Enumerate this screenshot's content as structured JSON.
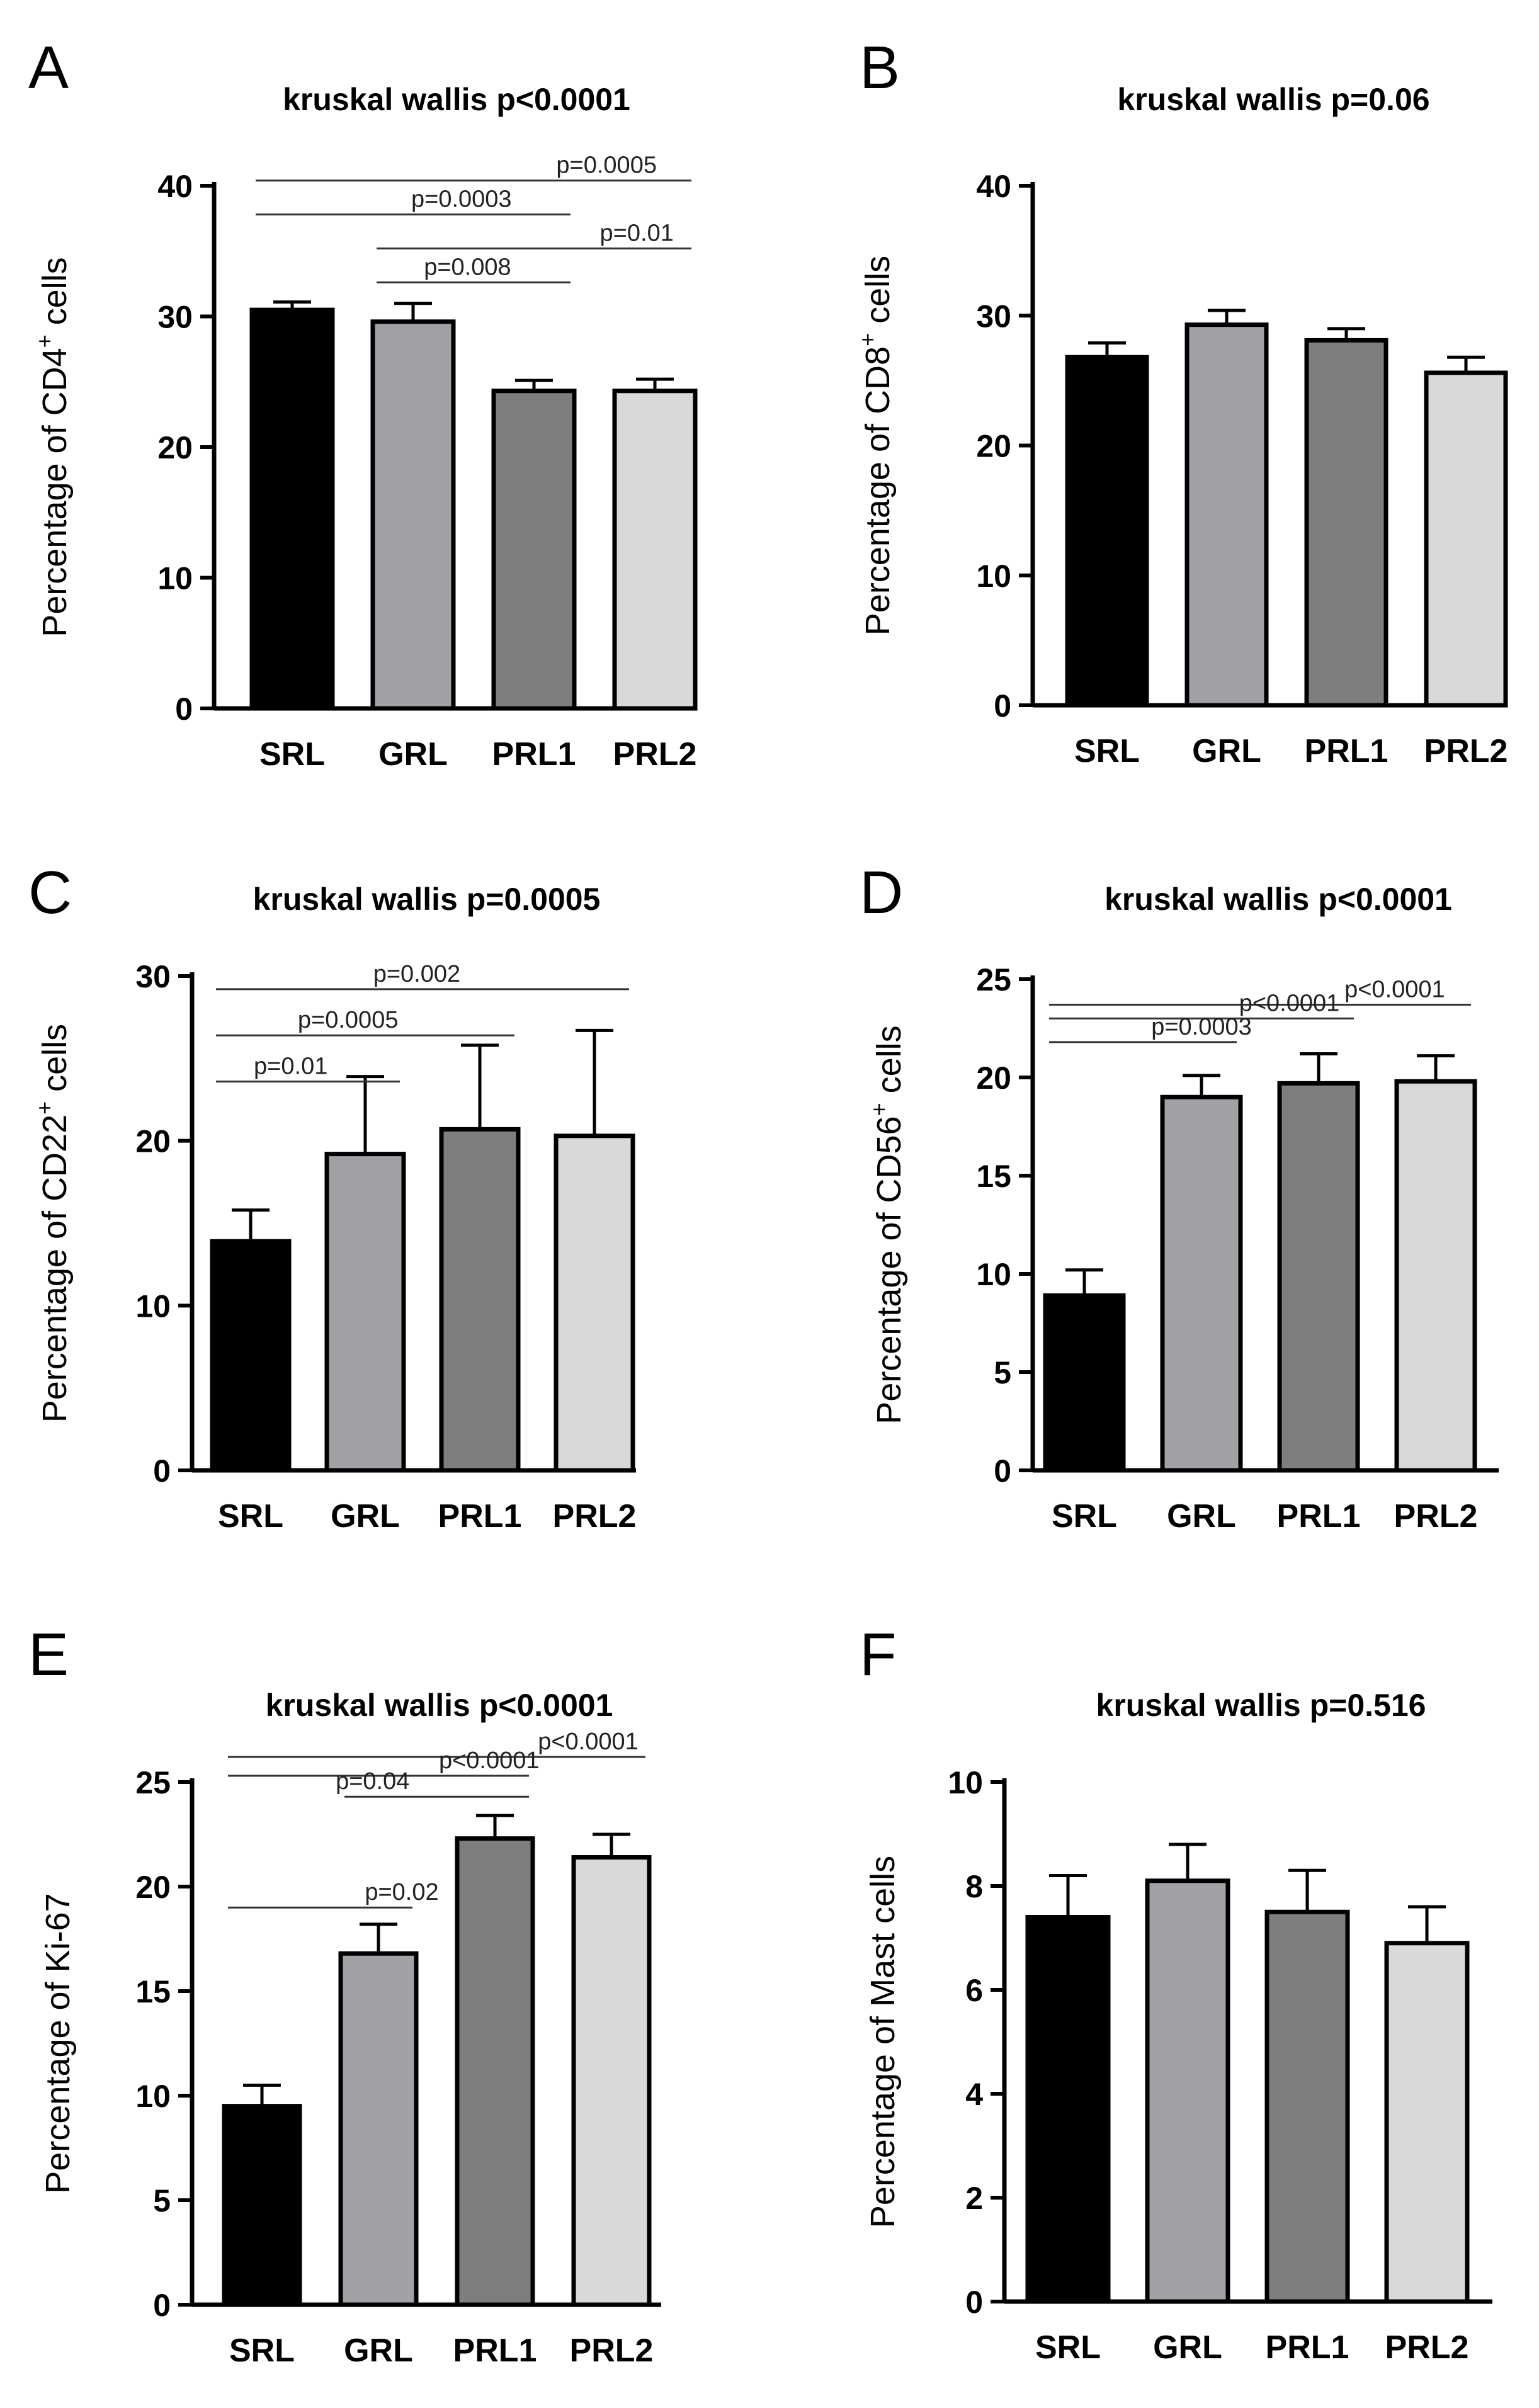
{
  "figure": {
    "description_colors": {
      "SRL": "#000000",
      "GRL": "#a1a1a6",
      "PRL1": "#7e7e7e",
      "PRL2": "#d9d9d9"
    }
  },
  "chart_data": [
    {
      "panel": "A",
      "type": "bar",
      "title": "kruskal wallis p<0.0001",
      "ylabel_prefix": "Percentage of CD4",
      "ylabel_sup": "+",
      "ylabel_suffix": " cells",
      "categories": [
        "SRL",
        "GRL",
        "PRL1",
        "PRL2"
      ],
      "values": [
        30.5,
        29.6,
        24.3,
        24.3
      ],
      "errors": [
        0.6,
        1.4,
        0.8,
        0.9
      ],
      "ylim": [
        0,
        40
      ],
      "yticks": [
        0,
        10,
        20,
        30,
        40
      ],
      "ytick_labels": [
        "0",
        "10",
        "20",
        "30",
        "40"
      ],
      "colors": [
        "#000000",
        "#a1a1a6",
        "#7e7e7e",
        "#d9d9d9"
      ],
      "annotations": [
        {
          "from": 0,
          "to": 3,
          "y": 40.4,
          "label": "p=0.0005",
          "label_x": 2.6
        },
        {
          "from": 0,
          "to": 2,
          "y": 37.8,
          "label": "p=0.0003",
          "label_x": 1.4
        },
        {
          "from": 1,
          "to": 3,
          "y": 35.2,
          "label": "p=0.01",
          "label_x": 2.85
        },
        {
          "from": 1,
          "to": 2,
          "y": 32.6,
          "label": "p=0.008",
          "label_x": 1.45
        }
      ]
    },
    {
      "panel": "B",
      "type": "bar",
      "title": "kruskal wallis p=0.06",
      "ylabel_prefix": "Percentage of CD8",
      "ylabel_sup": "+",
      "ylabel_suffix": " cells",
      "categories": [
        "SRL",
        "GRL",
        "PRL1",
        "PRL2"
      ],
      "values": [
        26.8,
        29.3,
        28.1,
        25.6
      ],
      "errors": [
        1.1,
        1.1,
        0.9,
        1.2
      ],
      "ylim": [
        0,
        40
      ],
      "yticks": [
        0,
        10,
        20,
        30,
        40
      ],
      "ytick_labels": [
        "0",
        "10",
        "20",
        "30",
        "40"
      ],
      "colors": [
        "#000000",
        "#a1a1a6",
        "#7e7e7e",
        "#d9d9d9"
      ],
      "annotations": []
    },
    {
      "panel": "C",
      "type": "bar",
      "title": "kruskal wallis p=0.0005",
      "ylabel_prefix": "Percentage of CD22",
      "ylabel_sup": "+",
      "ylabel_suffix": " cells",
      "categories": [
        "SRL",
        "GRL",
        "PRL1",
        "PRL2"
      ],
      "values": [
        13.9,
        19.2,
        20.7,
        20.3
      ],
      "errors": [
        1.9,
        4.7,
        5.1,
        6.4
      ],
      "ylim": [
        0,
        30
      ],
      "yticks": [
        0,
        10,
        20,
        30
      ],
      "ytick_labels": [
        "0",
        "10",
        "20",
        "30"
      ],
      "colors": [
        "#000000",
        "#a1a1a6",
        "#7e7e7e",
        "#d9d9d9"
      ],
      "annotations": [
        {
          "from": 0,
          "to": 3,
          "y": 29.2,
          "label": "p=0.002",
          "label_x": 1.45
        },
        {
          "from": 0,
          "to": 2,
          "y": 26.4,
          "label": "p=0.0005",
          "label_x": 0.85
        },
        {
          "from": 0,
          "to": 1,
          "y": 23.6,
          "label": "p=0.01",
          "label_x": 0.35
        }
      ]
    },
    {
      "panel": "D",
      "type": "bar",
      "title": "kruskal wallis p<0.0001",
      "ylabel_prefix": "Percentage of CD56",
      "ylabel_sup": "+",
      "ylabel_suffix": " cells",
      "categories": [
        "SRL",
        "GRL",
        "PRL1",
        "PRL2"
      ],
      "values": [
        8.9,
        19.0,
        19.7,
        19.8
      ],
      "errors": [
        1.3,
        1.1,
        1.5,
        1.3
      ],
      "ylim": [
        0,
        25
      ],
      "yticks": [
        0,
        5,
        10,
        15,
        20,
        25
      ],
      "ytick_labels": [
        "0",
        "5",
        "10",
        "15",
        "20",
        "25"
      ],
      "colors": [
        "#000000",
        "#a1a1a6",
        "#7e7e7e",
        "#d9d9d9"
      ],
      "annotations": [
        {
          "from": 0,
          "to": 3,
          "y": 23.7,
          "label": "p<0.0001",
          "label_x": 2.65
        },
        {
          "from": 0,
          "to": 2,
          "y": 23.0,
          "label": "p<0.0001",
          "label_x": 1.75
        },
        {
          "from": 0,
          "to": 1,
          "y": 21.8,
          "label": "p=0.0003",
          "label_x": 1.0
        }
      ]
    },
    {
      "panel": "E",
      "type": "bar",
      "title": "kruskal wallis p<0.0001",
      "ylabel_prefix": "Percentage of Ki-67",
      "ylabel_sup": "",
      "ylabel_suffix": "",
      "categories": [
        "SRL",
        "GRL",
        "PRL1",
        "PRL2"
      ],
      "values": [
        9.5,
        16.8,
        22.3,
        21.4
      ],
      "errors": [
        1.0,
        1.4,
        1.1,
        1.1
      ],
      "ylim": [
        0,
        25
      ],
      "yticks": [
        0,
        5,
        10,
        15,
        20,
        25
      ],
      "ytick_labels": [
        "0",
        "5",
        "10",
        "15",
        "20",
        "25"
      ],
      "colors": [
        "#000000",
        "#a1a1a6",
        "#7e7e7e",
        "#d9d9d9"
      ],
      "annotations": [
        {
          "from": 0,
          "to": 3,
          "y": 26.2,
          "label": "p<0.0001",
          "label_x": 2.8
        },
        {
          "from": 0,
          "to": 2,
          "y": 25.3,
          "label": "p<0.0001",
          "label_x": 1.95
        },
        {
          "from": 1,
          "to": 2,
          "y": 24.3,
          "label": "p=0.04",
          "label_x": 0.95
        },
        {
          "from": 0,
          "to": 1,
          "y": 19.0,
          "label": "p=0.02",
          "label_x": 1.2
        }
      ]
    },
    {
      "panel": "F",
      "type": "bar",
      "title": "kruskal wallis p=0.516",
      "ylabel_prefix": "Percentage of Mast cells",
      "ylabel_sup": "",
      "ylabel_suffix": "",
      "categories": [
        "SRL",
        "GRL",
        "PRL1",
        "PRL2"
      ],
      "values": [
        7.4,
        8.1,
        7.5,
        6.9
      ],
      "errors": [
        0.8,
        0.7,
        0.8,
        0.7
      ],
      "ylim": [
        0,
        10
      ],
      "yticks": [
        0,
        2,
        4,
        6,
        8,
        10
      ],
      "ytick_labels": [
        "0",
        "2",
        "4",
        "6",
        "8",
        "10"
      ],
      "colors": [
        "#000000",
        "#a1a1a6",
        "#7e7e7e",
        "#d9d9d9"
      ],
      "annotations": []
    }
  ]
}
